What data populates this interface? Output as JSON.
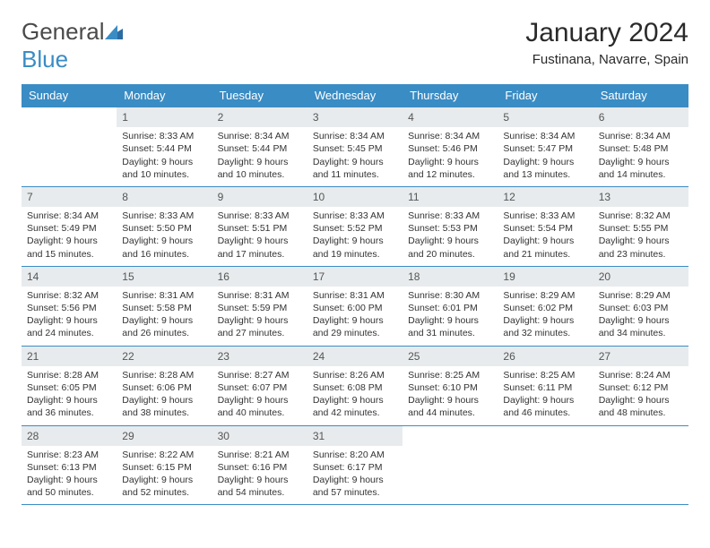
{
  "logo": {
    "part1": "General",
    "part2": "Blue"
  },
  "title": "January 2024",
  "location": "Fustinana, Navarre, Spain",
  "colors": {
    "header_bg": "#3a8cc4",
    "daynum_bg": "#e8ebed",
    "border": "#3a8cc4",
    "text": "#333333"
  },
  "typography": {
    "title_size": 30,
    "location_size": 15,
    "header_size": 13,
    "daynum_size": 12,
    "body_size": 10.5
  },
  "weekdays": [
    "Sunday",
    "Monday",
    "Tuesday",
    "Wednesday",
    "Thursday",
    "Friday",
    "Saturday"
  ],
  "weeks": [
    [
      {
        "empty": true
      },
      {
        "day": "1",
        "sunrise": "Sunrise: 8:33 AM",
        "sunset": "Sunset: 5:44 PM",
        "daylight1": "Daylight: 9 hours",
        "daylight2": "and 10 minutes."
      },
      {
        "day": "2",
        "sunrise": "Sunrise: 8:34 AM",
        "sunset": "Sunset: 5:44 PM",
        "daylight1": "Daylight: 9 hours",
        "daylight2": "and 10 minutes."
      },
      {
        "day": "3",
        "sunrise": "Sunrise: 8:34 AM",
        "sunset": "Sunset: 5:45 PM",
        "daylight1": "Daylight: 9 hours",
        "daylight2": "and 11 minutes."
      },
      {
        "day": "4",
        "sunrise": "Sunrise: 8:34 AM",
        "sunset": "Sunset: 5:46 PM",
        "daylight1": "Daylight: 9 hours",
        "daylight2": "and 12 minutes."
      },
      {
        "day": "5",
        "sunrise": "Sunrise: 8:34 AM",
        "sunset": "Sunset: 5:47 PM",
        "daylight1": "Daylight: 9 hours",
        "daylight2": "and 13 minutes."
      },
      {
        "day": "6",
        "sunrise": "Sunrise: 8:34 AM",
        "sunset": "Sunset: 5:48 PM",
        "daylight1": "Daylight: 9 hours",
        "daylight2": "and 14 minutes."
      }
    ],
    [
      {
        "day": "7",
        "sunrise": "Sunrise: 8:34 AM",
        "sunset": "Sunset: 5:49 PM",
        "daylight1": "Daylight: 9 hours",
        "daylight2": "and 15 minutes."
      },
      {
        "day": "8",
        "sunrise": "Sunrise: 8:33 AM",
        "sunset": "Sunset: 5:50 PM",
        "daylight1": "Daylight: 9 hours",
        "daylight2": "and 16 minutes."
      },
      {
        "day": "9",
        "sunrise": "Sunrise: 8:33 AM",
        "sunset": "Sunset: 5:51 PM",
        "daylight1": "Daylight: 9 hours",
        "daylight2": "and 17 minutes."
      },
      {
        "day": "10",
        "sunrise": "Sunrise: 8:33 AM",
        "sunset": "Sunset: 5:52 PM",
        "daylight1": "Daylight: 9 hours",
        "daylight2": "and 19 minutes."
      },
      {
        "day": "11",
        "sunrise": "Sunrise: 8:33 AM",
        "sunset": "Sunset: 5:53 PM",
        "daylight1": "Daylight: 9 hours",
        "daylight2": "and 20 minutes."
      },
      {
        "day": "12",
        "sunrise": "Sunrise: 8:33 AM",
        "sunset": "Sunset: 5:54 PM",
        "daylight1": "Daylight: 9 hours",
        "daylight2": "and 21 minutes."
      },
      {
        "day": "13",
        "sunrise": "Sunrise: 8:32 AM",
        "sunset": "Sunset: 5:55 PM",
        "daylight1": "Daylight: 9 hours",
        "daylight2": "and 23 minutes."
      }
    ],
    [
      {
        "day": "14",
        "sunrise": "Sunrise: 8:32 AM",
        "sunset": "Sunset: 5:56 PM",
        "daylight1": "Daylight: 9 hours",
        "daylight2": "and 24 minutes."
      },
      {
        "day": "15",
        "sunrise": "Sunrise: 8:31 AM",
        "sunset": "Sunset: 5:58 PM",
        "daylight1": "Daylight: 9 hours",
        "daylight2": "and 26 minutes."
      },
      {
        "day": "16",
        "sunrise": "Sunrise: 8:31 AM",
        "sunset": "Sunset: 5:59 PM",
        "daylight1": "Daylight: 9 hours",
        "daylight2": "and 27 minutes."
      },
      {
        "day": "17",
        "sunrise": "Sunrise: 8:31 AM",
        "sunset": "Sunset: 6:00 PM",
        "daylight1": "Daylight: 9 hours",
        "daylight2": "and 29 minutes."
      },
      {
        "day": "18",
        "sunrise": "Sunrise: 8:30 AM",
        "sunset": "Sunset: 6:01 PM",
        "daylight1": "Daylight: 9 hours",
        "daylight2": "and 31 minutes."
      },
      {
        "day": "19",
        "sunrise": "Sunrise: 8:29 AM",
        "sunset": "Sunset: 6:02 PM",
        "daylight1": "Daylight: 9 hours",
        "daylight2": "and 32 minutes."
      },
      {
        "day": "20",
        "sunrise": "Sunrise: 8:29 AM",
        "sunset": "Sunset: 6:03 PM",
        "daylight1": "Daylight: 9 hours",
        "daylight2": "and 34 minutes."
      }
    ],
    [
      {
        "day": "21",
        "sunrise": "Sunrise: 8:28 AM",
        "sunset": "Sunset: 6:05 PM",
        "daylight1": "Daylight: 9 hours",
        "daylight2": "and 36 minutes."
      },
      {
        "day": "22",
        "sunrise": "Sunrise: 8:28 AM",
        "sunset": "Sunset: 6:06 PM",
        "daylight1": "Daylight: 9 hours",
        "daylight2": "and 38 minutes."
      },
      {
        "day": "23",
        "sunrise": "Sunrise: 8:27 AM",
        "sunset": "Sunset: 6:07 PM",
        "daylight1": "Daylight: 9 hours",
        "daylight2": "and 40 minutes."
      },
      {
        "day": "24",
        "sunrise": "Sunrise: 8:26 AM",
        "sunset": "Sunset: 6:08 PM",
        "daylight1": "Daylight: 9 hours",
        "daylight2": "and 42 minutes."
      },
      {
        "day": "25",
        "sunrise": "Sunrise: 8:25 AM",
        "sunset": "Sunset: 6:10 PM",
        "daylight1": "Daylight: 9 hours",
        "daylight2": "and 44 minutes."
      },
      {
        "day": "26",
        "sunrise": "Sunrise: 8:25 AM",
        "sunset": "Sunset: 6:11 PM",
        "daylight1": "Daylight: 9 hours",
        "daylight2": "and 46 minutes."
      },
      {
        "day": "27",
        "sunrise": "Sunrise: 8:24 AM",
        "sunset": "Sunset: 6:12 PM",
        "daylight1": "Daylight: 9 hours",
        "daylight2": "and 48 minutes."
      }
    ],
    [
      {
        "day": "28",
        "sunrise": "Sunrise: 8:23 AM",
        "sunset": "Sunset: 6:13 PM",
        "daylight1": "Daylight: 9 hours",
        "daylight2": "and 50 minutes."
      },
      {
        "day": "29",
        "sunrise": "Sunrise: 8:22 AM",
        "sunset": "Sunset: 6:15 PM",
        "daylight1": "Daylight: 9 hours",
        "daylight2": "and 52 minutes."
      },
      {
        "day": "30",
        "sunrise": "Sunrise: 8:21 AM",
        "sunset": "Sunset: 6:16 PM",
        "daylight1": "Daylight: 9 hours",
        "daylight2": "and 54 minutes."
      },
      {
        "day": "31",
        "sunrise": "Sunrise: 8:20 AM",
        "sunset": "Sunset: 6:17 PM",
        "daylight1": "Daylight: 9 hours",
        "daylight2": "and 57 minutes."
      },
      {
        "empty": true
      },
      {
        "empty": true
      },
      {
        "empty": true
      }
    ]
  ]
}
